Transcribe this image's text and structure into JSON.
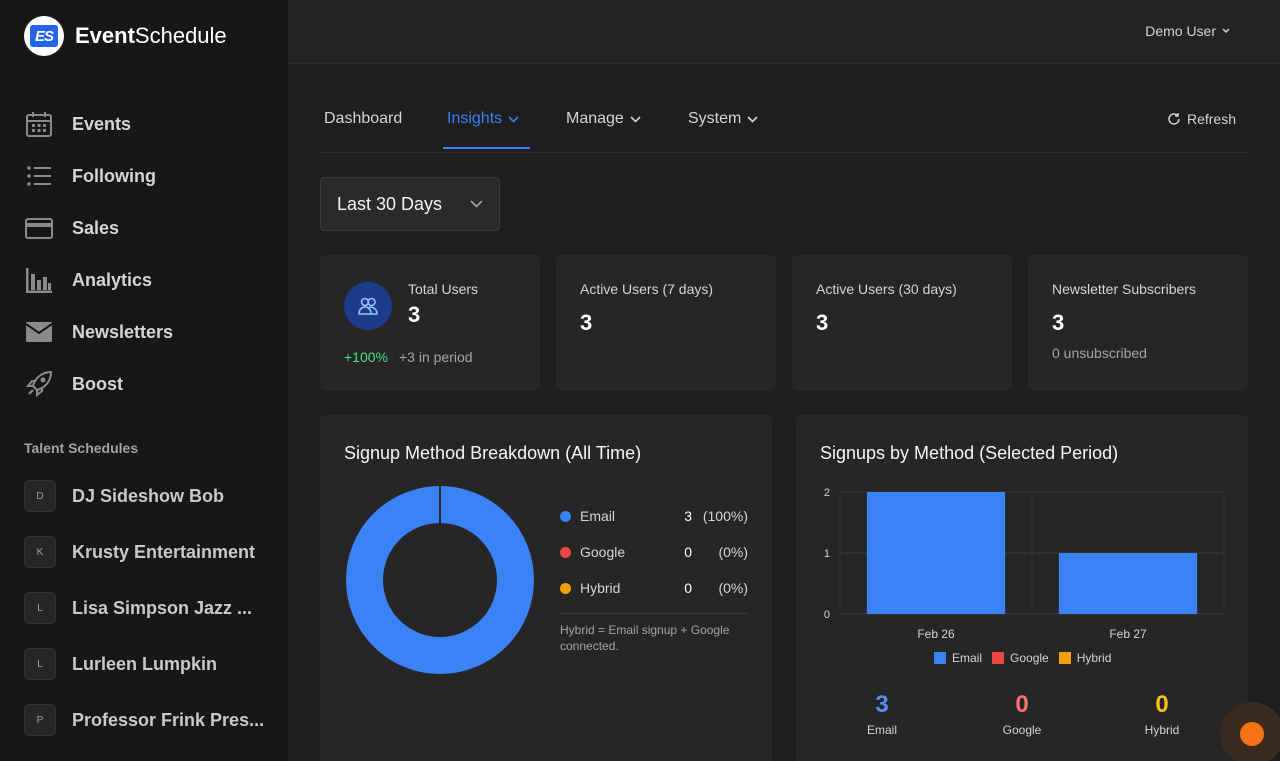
{
  "brand": {
    "name_bold": "Event",
    "name_rest": "Schedule",
    "logo_text": "ES"
  },
  "sidebar": {
    "items": [
      {
        "label": "Events",
        "icon": "calendar-icon"
      },
      {
        "label": "Following",
        "icon": "list-icon"
      },
      {
        "label": "Sales",
        "icon": "credit-card-icon"
      },
      {
        "label": "Analytics",
        "icon": "bar-chart-icon"
      },
      {
        "label": "Newsletters",
        "icon": "envelope-icon"
      },
      {
        "label": "Boost",
        "icon": "rocket-icon"
      }
    ],
    "section_title": "Talent Schedules",
    "talent": [
      {
        "initial": "D",
        "label": "DJ Sideshow Bob"
      },
      {
        "initial": "K",
        "label": "Krusty Entertainment"
      },
      {
        "initial": "L",
        "label": "Lisa Simpson Jazz ..."
      },
      {
        "initial": "L",
        "label": "Lurleen Lumpkin"
      },
      {
        "initial": "P",
        "label": "Professor Frink Pres..."
      }
    ]
  },
  "topbar": {
    "user": "Demo User"
  },
  "tabs": [
    {
      "label": "Dashboard"
    },
    {
      "label": "Insights"
    },
    {
      "label": "Manage"
    },
    {
      "label": "System"
    }
  ],
  "refresh_label": "Refresh",
  "period": {
    "selected": "Last 30 Days"
  },
  "stats": {
    "total_users": {
      "title": "Total Users",
      "value": "3",
      "change": "+100%",
      "sub": "+3 in period"
    },
    "active7": {
      "title": "Active Users (7 days)",
      "value": "3"
    },
    "active30": {
      "title": "Active Users (30 days)",
      "value": "3"
    },
    "newsletter": {
      "title": "Newsletter Subscribers",
      "value": "3",
      "sub": "0 unsubscribed"
    }
  },
  "signup_breakdown": {
    "title": "Signup Method Breakdown (All Time)",
    "legend": [
      {
        "label": "Email",
        "value": "3",
        "pct": "(100%)",
        "color": "#3b82f6"
      },
      {
        "label": "Google",
        "value": "0",
        "pct": "(0%)",
        "color": "#ef4444"
      },
      {
        "label": "Hybrid",
        "value": "0",
        "pct": "(0%)",
        "color": "#f59e0b"
      }
    ],
    "note": "Hybrid = Email signup + Google connected."
  },
  "signups_by_method": {
    "title": "Signups by Method (Selected Period)",
    "totals": [
      {
        "label": "Email",
        "value": "3",
        "color": "#4f8ff7"
      },
      {
        "label": "Google",
        "value": "0",
        "color": "#f87171"
      },
      {
        "label": "Hybrid",
        "value": "0",
        "color": "#fbbf24"
      }
    ]
  },
  "chart_data": [
    {
      "type": "pie",
      "title": "Signup Method Breakdown (All Time)",
      "categories": [
        "Email",
        "Google",
        "Hybrid"
      ],
      "values": [
        3,
        0,
        0
      ],
      "colors": [
        "#3b82f6",
        "#ef4444",
        "#f59e0b"
      ]
    },
    {
      "type": "bar",
      "title": "Signups by Method (Selected Period)",
      "categories": [
        "Feb 26",
        "Feb 27"
      ],
      "series": [
        {
          "name": "Email",
          "values": [
            2,
            1
          ],
          "color": "#3b82f6"
        },
        {
          "name": "Google",
          "values": [
            0,
            0
          ],
          "color": "#ef4444"
        },
        {
          "name": "Hybrid",
          "values": [
            0,
            0
          ],
          "color": "#f59e0b"
        }
      ],
      "ylim": [
        0,
        2
      ],
      "yticks": [
        "0",
        "1",
        "2"
      ],
      "legend": "bottom",
      "grid": true
    }
  ]
}
